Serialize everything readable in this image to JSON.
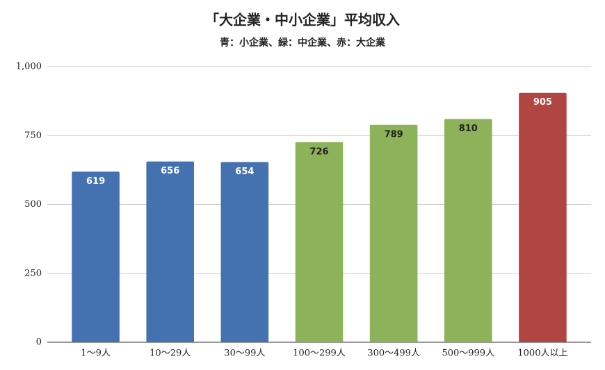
{
  "chart_data": {
    "type": "bar",
    "title": "「大企業・中小企業」平均収入",
    "subtitle": "青：小企業、緑：中企業、赤：大企業",
    "categories": [
      "1〜9人",
      "10〜29人",
      "30〜99人",
      "100〜299人",
      "300〜499人",
      "500〜999人",
      "1000人以上"
    ],
    "values": [
      619,
      656,
      654,
      726,
      789,
      810,
      905
    ],
    "colors": [
      "#4472b0",
      "#4472b0",
      "#4472b0",
      "#8db35a",
      "#8db35a",
      "#8db35a",
      "#b04541"
    ],
    "label_colors": [
      "#ffffff",
      "#ffffff",
      "#ffffff",
      "#222222",
      "#222222",
      "#222222",
      "#ffffff"
    ],
    "ylim": [
      0,
      1000
    ],
    "yticks": [
      0,
      250,
      500,
      750,
      {
        "value": 1000,
        "label": "1,000"
      }
    ],
    "grid": true
  }
}
